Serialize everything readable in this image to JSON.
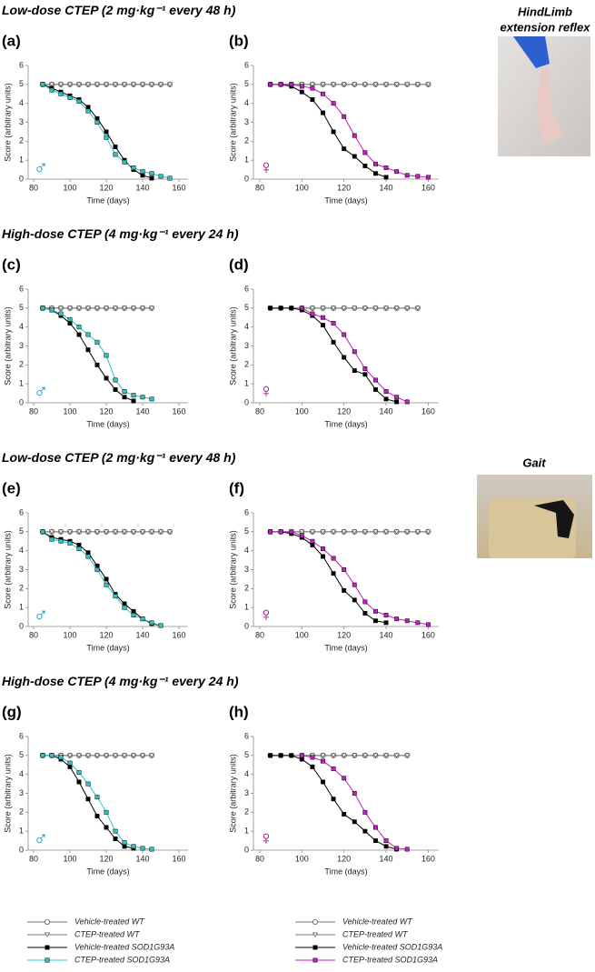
{
  "headings": [
    "Low‑dose CTEP (2 mg·kg⁻¹ every 48 h)",
    "High‑dose CTEP (4 mg·kg⁻¹ every 24 h)",
    "Low‑dose CTEP (2 mg·kg⁻¹ every 48 h)",
    "High‑dose CTEP (4 mg·kg⁻¹ every 24 h)"
  ],
  "photos": [
    {
      "caption": [
        "HindLimb",
        "extension  reflex"
      ]
    },
    {
      "caption": [
        "Gait"
      ]
    }
  ],
  "chart_data": [
    {
      "type": "line",
      "label": "(a)",
      "annotation": "♂",
      "annotation_color": "#1a8fc9",
      "xlabel": "Time (days)",
      "ylabel": "Score (arbitrary units)",
      "xlim": [
        77,
        165
      ],
      "xticks": [
        80,
        100,
        120,
        140,
        160
      ],
      "ylim": [
        0,
        6
      ],
      "yticks": [
        0,
        1,
        2,
        3,
        4,
        5,
        6
      ],
      "x": [
        85,
        90,
        95,
        100,
        105,
        110,
        115,
        120,
        125,
        130,
        135,
        140,
        145,
        150,
        155,
        160
      ],
      "series": [
        {
          "name": "Vehicle-treated WT",
          "color": "#555555",
          "marker": "circle",
          "values": [
            5,
            5,
            5,
            5,
            5,
            5,
            5,
            5,
            5,
            5,
            5,
            5,
            5,
            5,
            5,
            null
          ]
        },
        {
          "name": "CTEP-treated WT",
          "color": "#555555",
          "marker": "triangle",
          "values": [
            5,
            5,
            5,
            5,
            5,
            5,
            5,
            5,
            5,
            5,
            5,
            5,
            5,
            5,
            5,
            null
          ]
        },
        {
          "name": "Vehicle-treated SOD1G93A",
          "color": "#000000",
          "marker": "square",
          "values": [
            5,
            4.8,
            4.6,
            4.4,
            4.2,
            3.8,
            3.2,
            2.5,
            1.7,
            1.0,
            0.5,
            0.2,
            0.05,
            null,
            null,
            null
          ]
        },
        {
          "name": "CTEP-treated SOD1G93A",
          "color": "#2ec4c4",
          "marker": "square",
          "values": [
            5,
            4.7,
            4.5,
            4.3,
            4.1,
            3.6,
            3.0,
            2.2,
            1.3,
            0.9,
            0.6,
            0.4,
            0.3,
            0.15,
            0.05,
            null
          ]
        }
      ]
    },
    {
      "type": "line",
      "label": "(b)",
      "annotation": "♀",
      "annotation_color": "#a0007a",
      "xlabel": "Time (days)",
      "ylabel": "Score (arbitrary units)",
      "xlim": [
        77,
        165
      ],
      "xticks": [
        80,
        100,
        120,
        140,
        160
      ],
      "ylim": [
        0,
        6
      ],
      "yticks": [
        0,
        1,
        2,
        3,
        4,
        5,
        6
      ],
      "x": [
        85,
        90,
        95,
        100,
        105,
        110,
        115,
        120,
        125,
        130,
        135,
        140,
        145,
        150,
        155,
        160
      ],
      "series": [
        {
          "name": "Vehicle-treated WT",
          "color": "#555555",
          "marker": "circle",
          "values": [
            5,
            5,
            5,
            5,
            5,
            5,
            5,
            5,
            5,
            5,
            5,
            5,
            5,
            5,
            5,
            5
          ]
        },
        {
          "name": "CTEP-treated WT",
          "color": "#555555",
          "marker": "triangle",
          "values": [
            5,
            5,
            5,
            5,
            5,
            5,
            5,
            5,
            5,
            5,
            5,
            5,
            5,
            5,
            5,
            5
          ]
        },
        {
          "name": "Vehicle-treated SOD1G93A",
          "color": "#000000",
          "marker": "square",
          "values": [
            5,
            5,
            4.9,
            4.6,
            4.2,
            3.5,
            2.5,
            1.6,
            1.2,
            0.7,
            0.3,
            0.1,
            null,
            null,
            null,
            null
          ]
        },
        {
          "name": "CTEP-treated SOD1G93A",
          "color": "#c020c0",
          "marker": "square",
          "values": [
            5,
            5,
            5,
            4.9,
            4.8,
            4.5,
            4.0,
            3.3,
            2.3,
            1.4,
            0.8,
            0.6,
            0.4,
            0.2,
            0.15,
            0.1
          ]
        }
      ]
    },
    {
      "type": "line",
      "label": "(c)",
      "annotation": "♂",
      "annotation_color": "#1a8fc9",
      "xlabel": "Time (days)",
      "ylabel": "Score (arbitrary units)",
      "xlim": [
        77,
        165
      ],
      "xticks": [
        80,
        100,
        120,
        140,
        160
      ],
      "ylim": [
        0,
        6
      ],
      "yticks": [
        0,
        1,
        2,
        3,
        4,
        5,
        6
      ],
      "x": [
        85,
        90,
        95,
        100,
        105,
        110,
        115,
        120,
        125,
        130,
        135,
        140,
        145,
        150,
        155,
        160
      ],
      "series": [
        {
          "name": "Vehicle-treated WT",
          "color": "#555555",
          "marker": "circle",
          "values": [
            5,
            5,
            5,
            5,
            5,
            5,
            5,
            5,
            5,
            5,
            5,
            5,
            5,
            null,
            null,
            null
          ]
        },
        {
          "name": "CTEP-treated WT",
          "color": "#555555",
          "marker": "triangle",
          "values": [
            5,
            5,
            5,
            5,
            5,
            5,
            5,
            5,
            5,
            5,
            5,
            5,
            5,
            null,
            null,
            null
          ]
        },
        {
          "name": "Vehicle-treated SOD1G93A",
          "color": "#000000",
          "marker": "square",
          "values": [
            5,
            4.9,
            4.6,
            4.2,
            3.6,
            2.8,
            2.0,
            1.3,
            0.7,
            0.3,
            0.1,
            null,
            null,
            null,
            null,
            null
          ]
        },
        {
          "name": "CTEP-treated SOD1G93A",
          "color": "#2ec4c4",
          "marker": "square",
          "values": [
            5,
            4.9,
            4.7,
            4.4,
            4.0,
            3.6,
            3.2,
            2.5,
            1.2,
            0.6,
            0.4,
            0.3,
            0.2,
            null,
            null,
            null
          ]
        }
      ]
    },
    {
      "type": "line",
      "label": "(d)",
      "annotation": "♀",
      "annotation_color": "#a0007a",
      "xlabel": "Time (days)",
      "ylabel": "Score (arbitrary units)",
      "xlim": [
        77,
        165
      ],
      "xticks": [
        80,
        100,
        120,
        140,
        160
      ],
      "ylim": [
        0,
        6
      ],
      "yticks": [
        0,
        1,
        2,
        3,
        4,
        5,
        6
      ],
      "x": [
        85,
        90,
        95,
        100,
        105,
        110,
        115,
        120,
        125,
        130,
        135,
        140,
        145,
        150,
        155,
        160
      ],
      "series": [
        {
          "name": "Vehicle-treated WT",
          "color": "#555555",
          "marker": "circle",
          "values": [
            5,
            5,
            5,
            5,
            5,
            5,
            5,
            5,
            5,
            5,
            5,
            5,
            5,
            5,
            5,
            null
          ]
        },
        {
          "name": "CTEP-treated WT",
          "color": "#555555",
          "marker": "triangle",
          "values": [
            5,
            5,
            5,
            5,
            5,
            5,
            5,
            5,
            5,
            5,
            5,
            5,
            5,
            5,
            5,
            null
          ]
        },
        {
          "name": "Vehicle-treated SOD1G93A",
          "color": "#000000",
          "marker": "square",
          "values": [
            5,
            5,
            5,
            4.9,
            4.6,
            4.1,
            3.2,
            2.4,
            1.7,
            1.5,
            0.7,
            0.2,
            0.05,
            null,
            null,
            null
          ]
        },
        {
          "name": "CTEP-treated SOD1G93A",
          "color": "#c020c0",
          "marker": "square",
          "values": [
            null,
            null,
            null,
            5,
            4.7,
            4.5,
            4.2,
            3.6,
            2.7,
            1.8,
            1.2,
            0.6,
            0.3,
            0.05,
            null,
            null
          ]
        }
      ]
    },
    {
      "type": "line",
      "label": "(e)",
      "annotation": "♂",
      "annotation_color": "#1a8fc9",
      "xlabel": "Time (days)",
      "ylabel": "Score (arbitrary units)",
      "xlim": [
        77,
        165
      ],
      "xticks": [
        80,
        100,
        120,
        140,
        160
      ],
      "ylim": [
        0,
        6
      ],
      "yticks": [
        0,
        1,
        2,
        3,
        4,
        5,
        6
      ],
      "x": [
        85,
        90,
        95,
        100,
        105,
        110,
        115,
        120,
        125,
        130,
        135,
        140,
        145,
        150,
        155,
        160
      ],
      "series": [
        {
          "name": "Vehicle-treated WT",
          "color": "#555555",
          "marker": "circle",
          "values": [
            5,
            5,
            5,
            5,
            5,
            5,
            5,
            5,
            5,
            5,
            5,
            5,
            5,
            5,
            5,
            null
          ]
        },
        {
          "name": "CTEP-treated WT",
          "color": "#555555",
          "marker": "triangle",
          "values": [
            5,
            5,
            5,
            5,
            5,
            5,
            5,
            5,
            5,
            5,
            5,
            5,
            5,
            5,
            5,
            null
          ]
        },
        {
          "name": "Vehicle-treated SOD1G93A",
          "color": "#000000",
          "marker": "square",
          "values": [
            5,
            4.7,
            4.6,
            4.5,
            4.3,
            3.9,
            3.2,
            2.5,
            1.7,
            1.2,
            0.8,
            0.4,
            0.15,
            0.05,
            null,
            null
          ]
        },
        {
          "name": "CTEP-treated SOD1G93A",
          "color": "#2ec4c4",
          "marker": "square",
          "values": [
            5,
            4.6,
            4.5,
            4.4,
            4.1,
            3.7,
            3.0,
            2.2,
            1.6,
            1.0,
            0.6,
            0.4,
            0.2,
            0.05,
            null,
            null
          ]
        }
      ]
    },
    {
      "type": "line",
      "label": "(f)",
      "annotation": "♀",
      "annotation_color": "#a0007a",
      "xlabel": "Time (days)",
      "ylabel": "Score (arbitrary units)",
      "xlim": [
        77,
        165
      ],
      "xticks": [
        80,
        100,
        120,
        140,
        160
      ],
      "ylim": [
        0,
        6
      ],
      "yticks": [
        0,
        1,
        2,
        3,
        4,
        5,
        6
      ],
      "x": [
        85,
        90,
        95,
        100,
        105,
        110,
        115,
        120,
        125,
        130,
        135,
        140,
        145,
        150,
        155,
        160
      ],
      "series": [
        {
          "name": "Vehicle-treated WT",
          "color": "#555555",
          "marker": "circle",
          "values": [
            5,
            5,
            5,
            5,
            5,
            5,
            5,
            5,
            5,
            5,
            5,
            5,
            5,
            5,
            5,
            5
          ]
        },
        {
          "name": "CTEP-treated WT",
          "color": "#555555",
          "marker": "triangle",
          "values": [
            5,
            5,
            5,
            5,
            5,
            5,
            5,
            5,
            5,
            5,
            5,
            5,
            5,
            5,
            5,
            5
          ]
        },
        {
          "name": "Vehicle-treated SOD1G93A",
          "color": "#000000",
          "marker": "square",
          "values": [
            5,
            5,
            4.9,
            4.7,
            4.3,
            3.7,
            2.8,
            1.9,
            1.4,
            0.7,
            0.3,
            0.2,
            null,
            null,
            null,
            null
          ]
        },
        {
          "name": "CTEP-treated SOD1G93A",
          "color": "#c020c0",
          "marker": "square",
          "values": [
            5,
            5,
            5,
            4.8,
            4.5,
            4.1,
            3.6,
            3.0,
            2.2,
            1.3,
            0.8,
            0.6,
            0.4,
            0.3,
            0.2,
            0.1
          ]
        }
      ]
    },
    {
      "type": "line",
      "label": "(g)",
      "annotation": "♂",
      "annotation_color": "#1a8fc9",
      "xlabel": "Time (days)",
      "ylabel": "Score (arbitrary units)",
      "xlim": [
        77,
        165
      ],
      "xticks": [
        80,
        100,
        120,
        140,
        160
      ],
      "ylim": [
        0,
        6
      ],
      "yticks": [
        0,
        1,
        2,
        3,
        4,
        5,
        6
      ],
      "x": [
        85,
        90,
        95,
        100,
        105,
        110,
        115,
        120,
        125,
        130,
        135,
        140,
        145,
        150,
        155,
        160
      ],
      "series": [
        {
          "name": "Vehicle-treated WT",
          "color": "#555555",
          "marker": "circle",
          "values": [
            5,
            5,
            5,
            5,
            5,
            5,
            5,
            5,
            5,
            5,
            5,
            5,
            5,
            null,
            null,
            null
          ]
        },
        {
          "name": "CTEP-treated WT",
          "color": "#555555",
          "marker": "triangle",
          "values": [
            5,
            5,
            5,
            5,
            5,
            5,
            5,
            5,
            5,
            5,
            5,
            5,
            5,
            null,
            null,
            null
          ]
        },
        {
          "name": "Vehicle-treated SOD1G93A",
          "color": "#000000",
          "marker": "square",
          "values": [
            5,
            5,
            4.8,
            4.4,
            3.6,
            2.7,
            1.8,
            1.2,
            0.6,
            0.2,
            0.1,
            null,
            null,
            null,
            null,
            null
          ]
        },
        {
          "name": "CTEP-treated SOD1G93A",
          "color": "#2ec4c4",
          "marker": "square",
          "values": [
            5,
            5,
            4.9,
            4.6,
            4.1,
            3.5,
            2.8,
            2.0,
            1.0,
            0.4,
            0.2,
            0.1,
            0.05,
            null,
            null,
            null
          ]
        }
      ]
    },
    {
      "type": "line",
      "label": "(h)",
      "annotation": "♀",
      "annotation_color": "#a0007a",
      "xlabel": "Time (days)",
      "ylabel": "Score (arbitrary units)",
      "xlim": [
        77,
        165
      ],
      "xticks": [
        80,
        100,
        120,
        140,
        160
      ],
      "ylim": [
        0,
        6
      ],
      "yticks": [
        0,
        1,
        2,
        3,
        4,
        5,
        6
      ],
      "x": [
        85,
        90,
        95,
        100,
        105,
        110,
        115,
        120,
        125,
        130,
        135,
        140,
        145,
        150,
        155,
        160
      ],
      "series": [
        {
          "name": "Vehicle-treated WT",
          "color": "#555555",
          "marker": "circle",
          "values": [
            5,
            5,
            5,
            5,
            5,
            5,
            5,
            5,
            5,
            5,
            5,
            5,
            5,
            5,
            null,
            null
          ]
        },
        {
          "name": "CTEP-treated WT",
          "color": "#555555",
          "marker": "triangle",
          "values": [
            5,
            5,
            5,
            5,
            5,
            5,
            5,
            5,
            5,
            5,
            5,
            5,
            5,
            5,
            null,
            null
          ]
        },
        {
          "name": "Vehicle-treated SOD1G93A",
          "color": "#000000",
          "marker": "square",
          "values": [
            5,
            5,
            5,
            4.8,
            4.4,
            3.6,
            2.7,
            1.9,
            1.5,
            1.0,
            0.5,
            0.2,
            0.05,
            null,
            null,
            null
          ]
        },
        {
          "name": "CTEP-treated SOD1G93A",
          "color": "#c020c0",
          "marker": "square",
          "values": [
            null,
            null,
            null,
            5,
            4.9,
            4.7,
            4.3,
            3.8,
            3.0,
            2.0,
            1.2,
            0.5,
            0.1,
            0.05,
            null,
            null
          ]
        }
      ]
    }
  ]
}
